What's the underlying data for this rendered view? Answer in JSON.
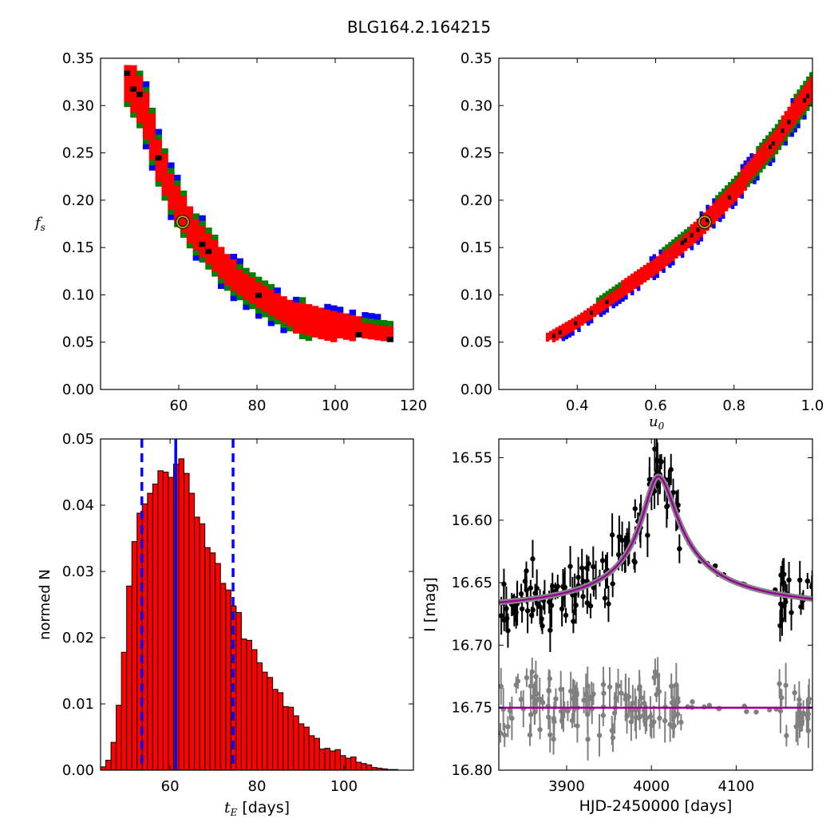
{
  "figure": {
    "title": "BLG164.2.164215"
  },
  "chart_data": [
    {
      "type": "heatmap",
      "panel": "top-left",
      "xlabel": "",
      "ylabel": "f_s",
      "xlim": [
        40,
        120
      ],
      "ylim": [
        0.0,
        0.35
      ],
      "xticks": [
        "60",
        "80",
        "100",
        "120"
      ],
      "yticks": [
        "0.00",
        "0.05",
        "0.10",
        "0.15",
        "0.20",
        "0.25",
        "0.30",
        "0.35"
      ],
      "levels": [
        {
          "name": "outer",
          "color": "#0000ff"
        },
        {
          "name": "middle",
          "color": "#008000"
        },
        {
          "name": "inner",
          "color": "#ff0000"
        },
        {
          "name": "core",
          "color": "#000000"
        }
      ],
      "ridge": [
        [
          46,
          0.33
        ],
        [
          50,
          0.3
        ],
        [
          54,
          0.24
        ],
        [
          58,
          0.2
        ],
        [
          62,
          0.17
        ],
        [
          66,
          0.15
        ],
        [
          72,
          0.12
        ],
        [
          80,
          0.095
        ],
        [
          88,
          0.075
        ],
        [
          96,
          0.065
        ],
        [
          106,
          0.055
        ],
        [
          114,
          0.05
        ]
      ],
      "best_fit": {
        "x": 61,
        "y": 0.177
      }
    },
    {
      "type": "heatmap",
      "panel": "top-right",
      "xlabel": "u_0",
      "ylabel": "",
      "xlim": [
        0.2,
        1.0
      ],
      "ylim": [
        0.0,
        0.35
      ],
      "xticks": [
        "0.4",
        "0.6",
        "0.8",
        "1.0"
      ],
      "yticks": [
        "0.00",
        "0.05",
        "0.10",
        "0.15",
        "0.20",
        "0.25",
        "0.30",
        "0.35"
      ],
      "ridge": [
        [
          0.32,
          0.05
        ],
        [
          0.4,
          0.07
        ],
        [
          0.5,
          0.1
        ],
        [
          0.6,
          0.13
        ],
        [
          0.7,
          0.165
        ],
        [
          0.8,
          0.21
        ],
        [
          0.9,
          0.26
        ],
        [
          1.0,
          0.32
        ]
      ],
      "best_fit": {
        "x": 0.725,
        "y": 0.177
      }
    },
    {
      "type": "bar",
      "panel": "bottom-left",
      "xlabel": "t_E [days]",
      "ylabel": "normed N",
      "xlim": [
        44,
        116
      ],
      "ylim": [
        0.0,
        0.05
      ],
      "xticks": [
        "60",
        "80",
        "100"
      ],
      "yticks": [
        "0.00",
        "0.01",
        "0.02",
        "0.03",
        "0.04",
        "0.05"
      ],
      "bin_start": 44,
      "bin_width": 1.2,
      "values": [
        0.0005,
        0.0015,
        0.0042,
        0.0098,
        0.0178,
        0.0278,
        0.0345,
        0.0388,
        0.0402,
        0.0418,
        0.0432,
        0.0452,
        0.045,
        0.0442,
        0.0462,
        0.047,
        0.0448,
        0.0418,
        0.0382,
        0.0372,
        0.0336,
        0.0328,
        0.0312,
        0.0282,
        0.0272,
        0.0248,
        0.0238,
        0.0198,
        0.0196,
        0.0182,
        0.0162,
        0.0148,
        0.014,
        0.0122,
        0.0117,
        0.0096,
        0.0095,
        0.0082,
        0.007,
        0.0065,
        0.0052,
        0.0048,
        0.0032,
        0.0033,
        0.0029,
        0.0031,
        0.0022,
        0.0018,
        0.002,
        0.0012,
        0.001,
        0.0008,
        0.0004,
        0.0003,
        0.0002,
        0.0001,
        0.0001,
        0.0
      ],
      "bar_color": "#ff0000",
      "vlines": [
        {
          "x": 53.5,
          "style": "dashed",
          "color": "#0000ff"
        },
        {
          "x": 61.3,
          "style": "solid",
          "color": "#0000ff"
        },
        {
          "x": 74.5,
          "style": "dashed",
          "color": "#0000ff"
        }
      ]
    },
    {
      "type": "scatter",
      "panel": "bottom-right",
      "xlabel": "HJD-2450000 [days]",
      "ylabel": "I [mag]",
      "xlim": [
        3820,
        4190
      ],
      "ylim": [
        16.8,
        16.535
      ],
      "xticks": [
        "3900",
        "4000",
        "4100"
      ],
      "yticks": [
        "16.55",
        "16.60",
        "16.65",
        "16.70",
        "16.75",
        "16.80"
      ],
      "model": {
        "t0": 4008,
        "peak_mag": 16.565,
        "base_mag": 16.677,
        "color": "#990099"
      },
      "series": [
        {
          "color": "#000000",
          "seed": 7
        },
        {
          "color": "#808080",
          "seed": 13
        }
      ],
      "residual_baseline": 16.75
    }
  ]
}
